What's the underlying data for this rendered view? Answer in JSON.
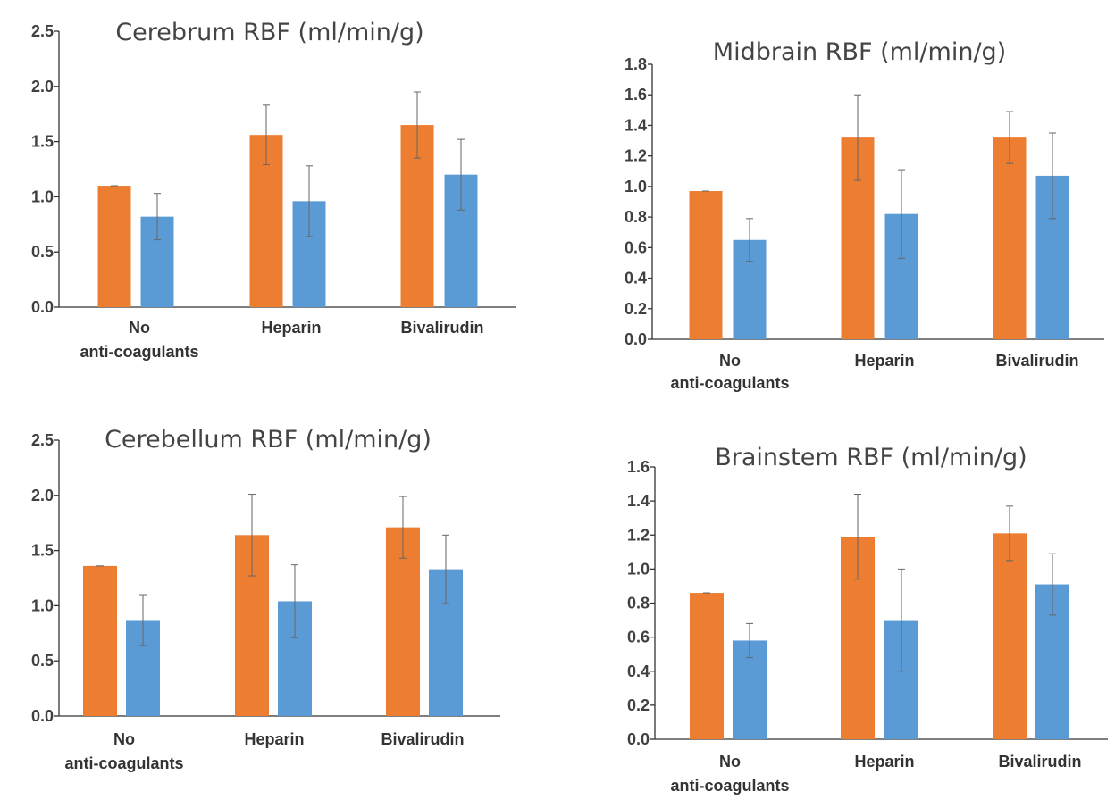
{
  "colors": {
    "series_a": "#ED7D31",
    "series_b": "#5B9BD5"
  },
  "chart_data": [
    {
      "type": "bar",
      "title": "Cerebrum RBF (ml/min/g)",
      "categories": [
        [
          "No",
          "anti-coagulants"
        ],
        [
          "Heparin"
        ],
        [
          "Bivalirudin"
        ]
      ],
      "ylim": [
        0,
        2.5
      ],
      "yticks": [
        "0.0",
        "0.5",
        "1.0",
        "1.5",
        "2.0",
        "2.5"
      ],
      "series": [
        {
          "values": [
            1.1,
            1.56,
            1.65
          ],
          "errors": [
            0.0,
            0.27,
            0.3
          ]
        },
        {
          "values": [
            0.82,
            0.96,
            1.2
          ],
          "errors": [
            0.21,
            0.32,
            0.32
          ]
        }
      ]
    },
    {
      "type": "bar",
      "title": "Midbrain RBF (ml/min/g)",
      "categories": [
        [
          "No",
          "anti-coagulants"
        ],
        [
          "Heparin"
        ],
        [
          "Bivalirudin"
        ]
      ],
      "ylim": [
        0,
        1.8
      ],
      "yticks": [
        "0.0",
        "0.2",
        "0.4",
        "0.6",
        "0.8",
        "1.0",
        "1.2",
        "1.4",
        "1.6",
        "1.8"
      ],
      "series": [
        {
          "values": [
            0.97,
            1.32,
            1.32
          ],
          "errors": [
            0.0,
            0.28,
            0.17
          ]
        },
        {
          "values": [
            0.65,
            0.82,
            1.07
          ],
          "errors": [
            0.14,
            0.29,
            0.28
          ]
        }
      ]
    },
    {
      "type": "bar",
      "title": "Cerebellum RBF (ml/min/g)",
      "categories": [
        [
          "No",
          "anti-coagulants"
        ],
        [
          "Heparin"
        ],
        [
          "Bivalirudin"
        ]
      ],
      "ylim": [
        0,
        2.5
      ],
      "yticks": [
        "0.0",
        "0.5",
        "1.0",
        "1.5",
        "2.0",
        "2.5"
      ],
      "series": [
        {
          "values": [
            1.36,
            1.64,
            1.71
          ],
          "errors": [
            0.0,
            0.37,
            0.28
          ]
        },
        {
          "values": [
            0.87,
            1.04,
            1.33
          ],
          "errors": [
            0.23,
            0.33,
            0.31
          ]
        }
      ]
    },
    {
      "type": "bar",
      "title": "Brainstem RBF (ml/min/g)",
      "categories": [
        [
          "No",
          "anti-coagulants"
        ],
        [
          "Heparin"
        ],
        [
          "Bivalirudin"
        ]
      ],
      "ylim": [
        0,
        1.6
      ],
      "yticks": [
        "0.0",
        "0.2",
        "0.4",
        "0.6",
        "0.8",
        "1.0",
        "1.2",
        "1.4",
        "1.6"
      ],
      "series": [
        {
          "values": [
            0.86,
            1.19,
            1.21
          ],
          "errors": [
            0.0,
            0.25,
            0.16
          ]
        },
        {
          "values": [
            0.58,
            0.7,
            0.91
          ],
          "errors": [
            0.1,
            0.3,
            0.18
          ]
        }
      ]
    }
  ]
}
